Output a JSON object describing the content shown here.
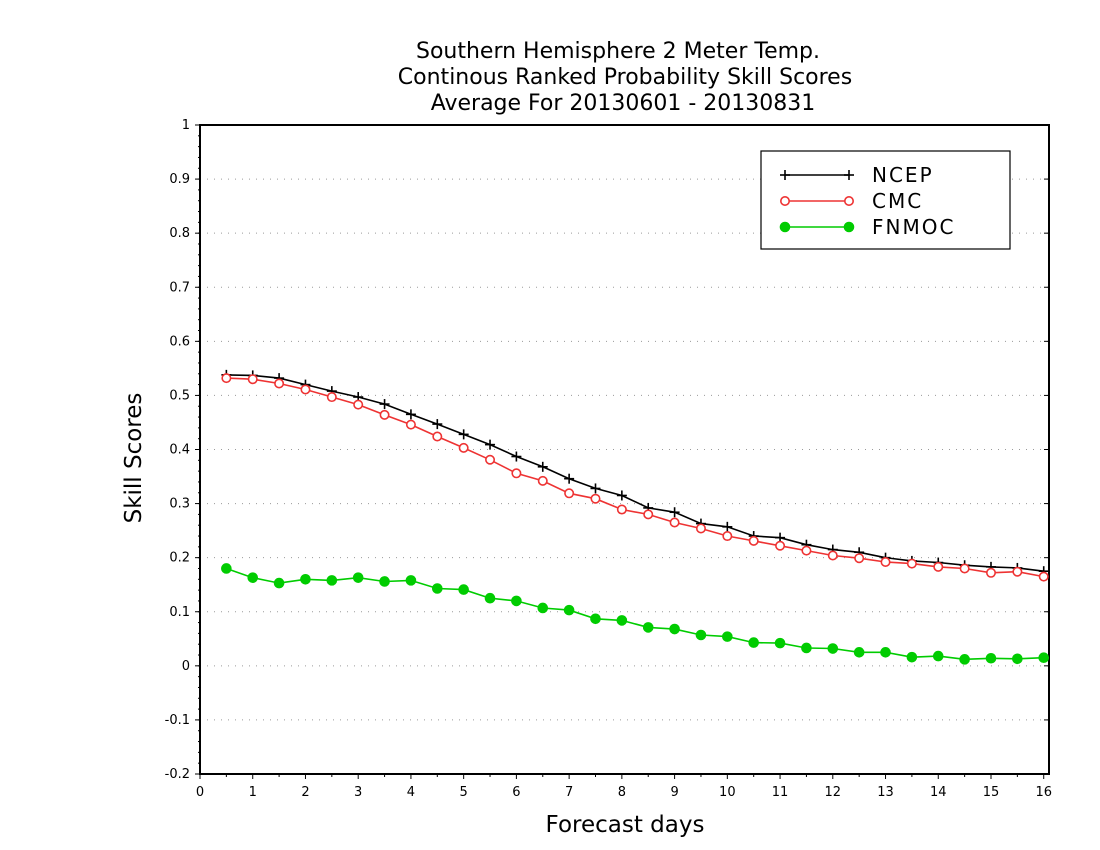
{
  "chart_data": {
    "type": "line",
    "title": [
      "Southern Hemisphere 2 Meter Temp.",
      "Continous Ranked Probability Skill Scores",
      "Average For 20130601 - 20130831"
    ],
    "xlabel": "Forecast days",
    "ylabel": "Skill Scores",
    "xlim": [
      0,
      16.1
    ],
    "ylim": [
      -0.2,
      1
    ],
    "xticks": [
      0,
      1,
      2,
      3,
      4,
      5,
      6,
      7,
      8,
      9,
      10,
      11,
      12,
      13,
      14,
      15,
      16
    ],
    "yticks": [
      -0.2,
      -0.1,
      0,
      0.1,
      0.2,
      0.3,
      0.4,
      0.5,
      0.6,
      0.7,
      0.8,
      0.9,
      1
    ],
    "ytick_labels": [
      "-0.2",
      "-0.1",
      "0",
      "0.1",
      "0.2",
      "0.3",
      "0.4",
      "0.5",
      "0.6",
      "0.7",
      "0.8",
      "0.9",
      "1"
    ],
    "grid": "horizontal dotted",
    "legend_position": "top-right",
    "x": [
      0.5,
      1,
      1.5,
      2,
      2.5,
      3,
      3.5,
      4,
      4.5,
      5,
      5.5,
      6,
      6.5,
      7,
      7.5,
      8,
      8.5,
      9,
      9.5,
      10,
      10.5,
      11,
      11.5,
      12,
      12.5,
      13,
      13.5,
      14,
      14.5,
      15,
      15.5,
      16
    ],
    "series": [
      {
        "name": "NCEP",
        "color": "#000000",
        "marker": "plus",
        "values": [
          0.538,
          0.537,
          0.532,
          0.52,
          0.508,
          0.497,
          0.484,
          0.465,
          0.447,
          0.428,
          0.409,
          0.387,
          0.368,
          0.346,
          0.328,
          0.315,
          0.292,
          0.284,
          0.263,
          0.257,
          0.24,
          0.237,
          0.224,
          0.215,
          0.21,
          0.2,
          0.194,
          0.191,
          0.186,
          0.183,
          0.181,
          0.175
        ]
      },
      {
        "name": "CMC",
        "color": "#ee3333",
        "marker": "open-circle",
        "values": [
          0.532,
          0.53,
          0.522,
          0.511,
          0.497,
          0.483,
          0.464,
          0.446,
          0.424,
          0.403,
          0.381,
          0.356,
          0.342,
          0.319,
          0.309,
          0.289,
          0.28,
          0.265,
          0.254,
          0.24,
          0.231,
          0.222,
          0.213,
          0.204,
          0.199,
          0.192,
          0.189,
          0.183,
          0.18,
          0.172,
          0.174,
          0.165
        ]
      },
      {
        "name": "FNMOC",
        "color": "#00cc00",
        "marker": "filled-circle",
        "values": [
          0.18,
          0.163,
          0.153,
          0.16,
          0.158,
          0.163,
          0.156,
          0.158,
          0.143,
          0.141,
          0.125,
          0.12,
          0.107,
          0.103,
          0.087,
          0.084,
          0.071,
          0.068,
          0.057,
          0.054,
          0.043,
          0.042,
          0.033,
          0.032,
          0.025,
          0.025,
          0.016,
          0.018,
          0.012,
          0.014,
          0.013,
          0.015
        ]
      }
    ]
  }
}
